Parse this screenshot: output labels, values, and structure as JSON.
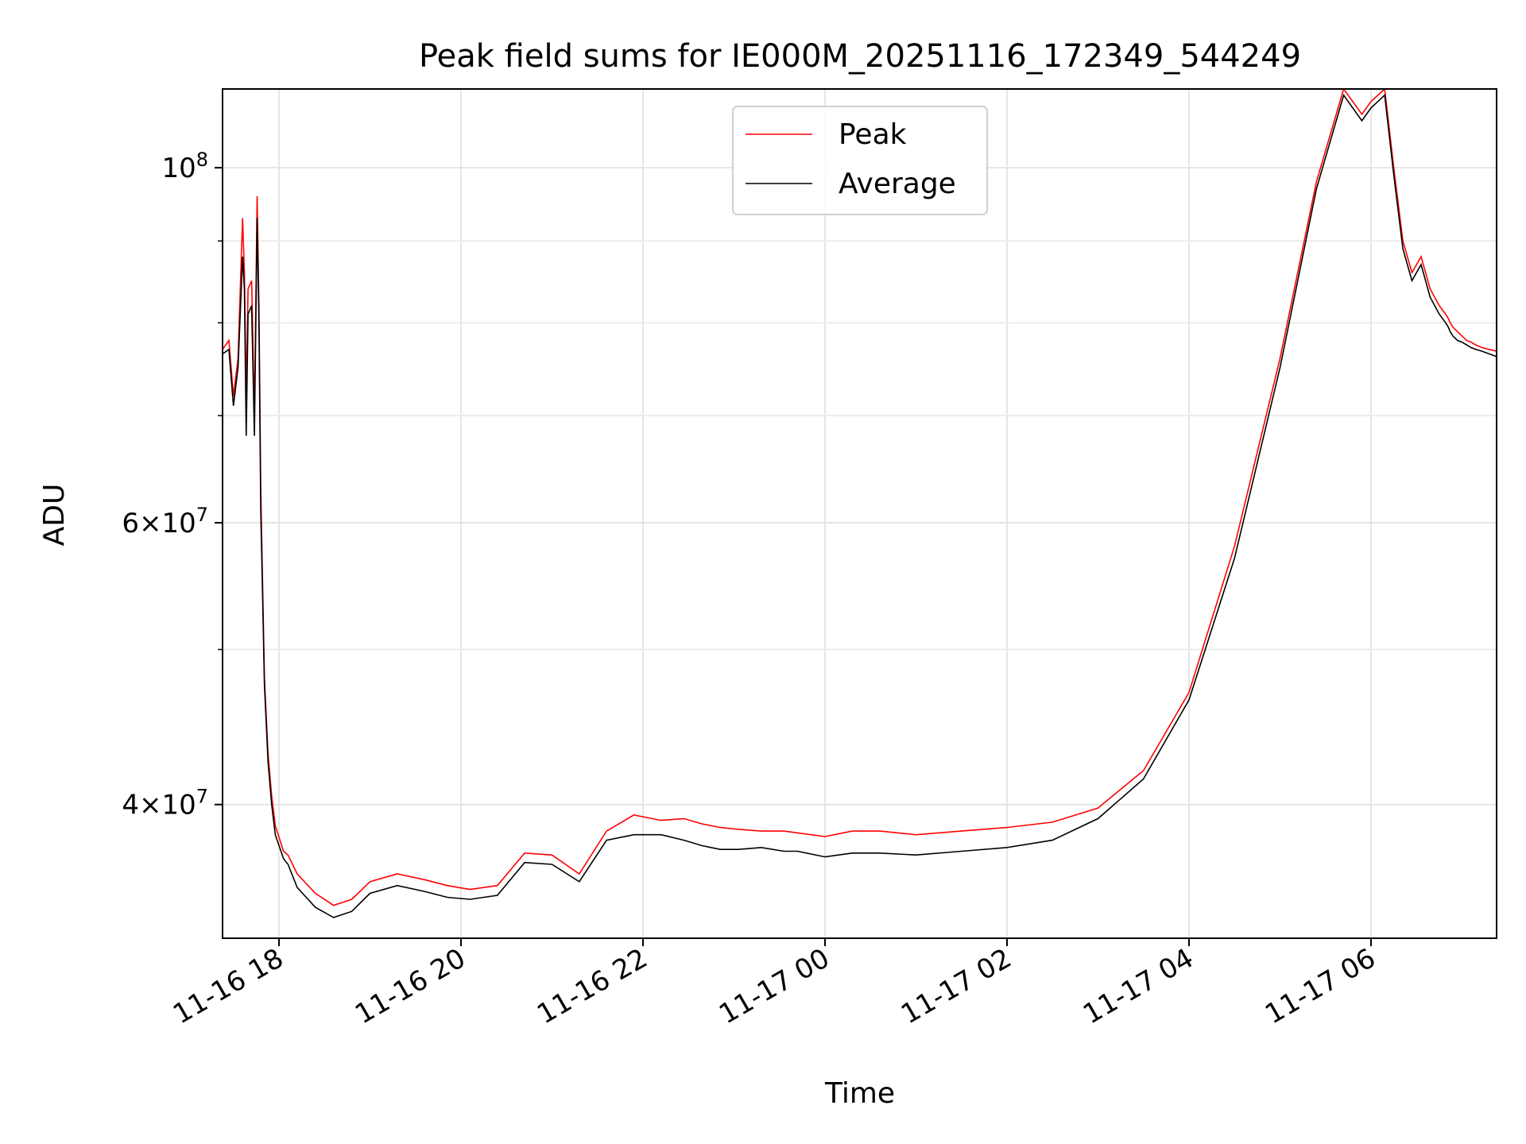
{
  "chart_data": {
    "type": "line",
    "title": "Peak field sums for IE000M_20251116_172349_544249",
    "xlabel": "Time",
    "ylabel": "ADU",
    "yscale": "log",
    "ylim": [
      33000000,
      112000000
    ],
    "xlim_hours": [
      17.38,
      31.38
    ],
    "grid": true,
    "legend_position": "upper-center",
    "x_ticks": [
      {
        "label": "11-16 18",
        "hour": 18
      },
      {
        "label": "11-16 20",
        "hour": 20
      },
      {
        "label": "11-16 22",
        "hour": 22
      },
      {
        "label": "11-17 00",
        "hour": 24
      },
      {
        "label": "11-17 02",
        "hour": 26
      },
      {
        "label": "11-17 04",
        "hour": 28
      },
      {
        "label": "11-17 06",
        "hour": 30
      }
    ],
    "y_ticks": [
      {
        "value": 40000000,
        "mant": "4",
        "exp": "7"
      },
      {
        "value": 60000000,
        "mant": "6",
        "exp": "7"
      },
      {
        "value": 100000000,
        "mant": "10",
        "exp": "8"
      }
    ],
    "y_minor": [
      50000000,
      70000000,
      80000000,
      90000000
    ],
    "series": [
      {
        "name": "Peak",
        "color": "#ff0000",
        "hours": [
          17.38,
          17.45,
          17.5,
          17.55,
          17.6,
          17.62,
          17.64,
          17.66,
          17.7,
          17.73,
          17.76,
          17.78,
          17.8,
          17.82,
          17.84,
          17.88,
          17.92,
          17.96,
          18.05,
          18.1,
          18.2,
          18.3,
          18.4,
          18.6,
          18.8,
          19.0,
          19.3,
          19.6,
          19.85,
          20.1,
          20.4,
          20.7,
          21.0,
          21.3,
          21.6,
          21.9,
          22.2,
          22.45,
          22.65,
          22.85,
          23.05,
          23.3,
          23.55,
          23.7,
          24.0,
          24.3,
          24.6,
          25.0,
          25.5,
          26.0,
          26.5,
          27.0,
          27.5,
          28.0,
          28.5,
          29.0,
          29.4,
          29.7,
          29.9,
          30.0,
          30.15,
          30.25,
          30.35,
          30.45,
          30.55,
          30.65,
          30.75,
          30.82,
          30.85,
          30.87,
          30.9,
          30.95,
          31.0,
          31.05,
          31.1,
          31.15,
          31.22,
          31.3,
          31.38
        ],
        "values": [
          77000000,
          78000000,
          72000000,
          76000000,
          93000000,
          86000000,
          72000000,
          84000000,
          85000000,
          70000000,
          96000000,
          82000000,
          63000000,
          55000000,
          48000000,
          43000000,
          40500000,
          38800000,
          37400000,
          37200000,
          36200000,
          35700000,
          35200000,
          34600000,
          34900000,
          35800000,
          36200000,
          35900000,
          35600000,
          35400000,
          35600000,
          37300000,
          37200000,
          36200000,
          38500000,
          39400000,
          39100000,
          39200000,
          38900000,
          38700000,
          38600000,
          38500000,
          38500000,
          38400000,
          38200000,
          38500000,
          38500000,
          38300000,
          38500000,
          38700000,
          39000000,
          39800000,
          42000000,
          47000000,
          58000000,
          76000000,
          98000000,
          112000000,
          108000000,
          110000000,
          112000000,
          100000000,
          90000000,
          86000000,
          88000000,
          84000000,
          82000000,
          81000000,
          80500000,
          80000000,
          79500000,
          79000000,
          78500000,
          78000000,
          77800000,
          77500000,
          77200000,
          77000000,
          76800000
        ]
      },
      {
        "name": "Average",
        "color": "#000000",
        "hours": [
          17.38,
          17.45,
          17.5,
          17.55,
          17.6,
          17.62,
          17.64,
          17.66,
          17.7,
          17.73,
          17.76,
          17.78,
          17.8,
          17.82,
          17.84,
          17.88,
          17.92,
          17.96,
          18.05,
          18.1,
          18.2,
          18.3,
          18.4,
          18.6,
          18.8,
          19.0,
          19.3,
          19.6,
          19.85,
          20.1,
          20.4,
          20.7,
          21.0,
          21.3,
          21.6,
          21.9,
          22.2,
          22.45,
          22.65,
          22.85,
          23.05,
          23.3,
          23.55,
          23.7,
          24.0,
          24.3,
          24.6,
          25.0,
          25.5,
          26.0,
          26.5,
          27.0,
          27.5,
          28.0,
          28.5,
          29.0,
          29.4,
          29.7,
          29.9,
          30.0,
          30.15,
          30.25,
          30.35,
          30.45,
          30.55,
          30.65,
          30.75,
          30.82,
          30.85,
          30.87,
          30.9,
          30.95,
          31.0,
          31.05,
          31.1,
          31.15,
          31.22,
          31.3,
          31.38
        ],
        "values": [
          76500000,
          77000000,
          71000000,
          75000000,
          88000000,
          84000000,
          68000000,
          81000000,
          82000000,
          68000000,
          93000000,
          80000000,
          61000000,
          54000000,
          47500000,
          42500000,
          40000000,
          38300000,
          37000000,
          36700000,
          35500000,
          35000000,
          34500000,
          34000000,
          34300000,
          35200000,
          35600000,
          35300000,
          35000000,
          34900000,
          35100000,
          36800000,
          36700000,
          35800000,
          38000000,
          38300000,
          38300000,
          38000000,
          37700000,
          37500000,
          37500000,
          37600000,
          37400000,
          37400000,
          37100000,
          37300000,
          37300000,
          37200000,
          37400000,
          37600000,
          38000000,
          39200000,
          41500000,
          46500000,
          57000000,
          75000000,
          97000000,
          111000000,
          107000000,
          109000000,
          111000000,
          99000000,
          89000000,
          85000000,
          87000000,
          83000000,
          81000000,
          80000000,
          79500000,
          79000000,
          78500000,
          78000000,
          77800000,
          77500000,
          77200000,
          77000000,
          76800000,
          76500000,
          76200000
        ]
      }
    ]
  }
}
